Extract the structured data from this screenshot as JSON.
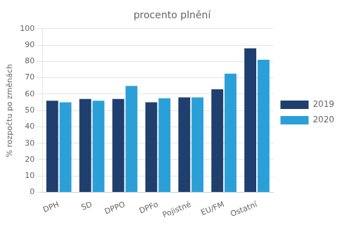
{
  "chart_data": {
    "type": "bar",
    "title": "procento plnění",
    "categories": [
      "DPH",
      "SD",
      "DPPO",
      "DPFo",
      "Pojistné",
      "EU/FM",
      "Ostatní"
    ],
    "series": [
      {
        "name": "2019",
        "color": "#1F3F6E",
        "values": [
          56,
          57,
          57,
          55,
          58,
          63,
          88
        ]
      },
      {
        "name": "2020",
        "color": "#2BA0D8",
        "values": [
          55,
          56,
          65,
          57.5,
          58,
          72.5,
          81
        ]
      }
    ],
    "ylabel": "% rozpočtu po změnách",
    "ylim": [
      0,
      100
    ],
    "yticks": [
      0,
      10,
      20,
      30,
      40,
      50,
      60,
      70,
      80,
      90,
      100
    ],
    "grid": true,
    "legend": "right"
  }
}
